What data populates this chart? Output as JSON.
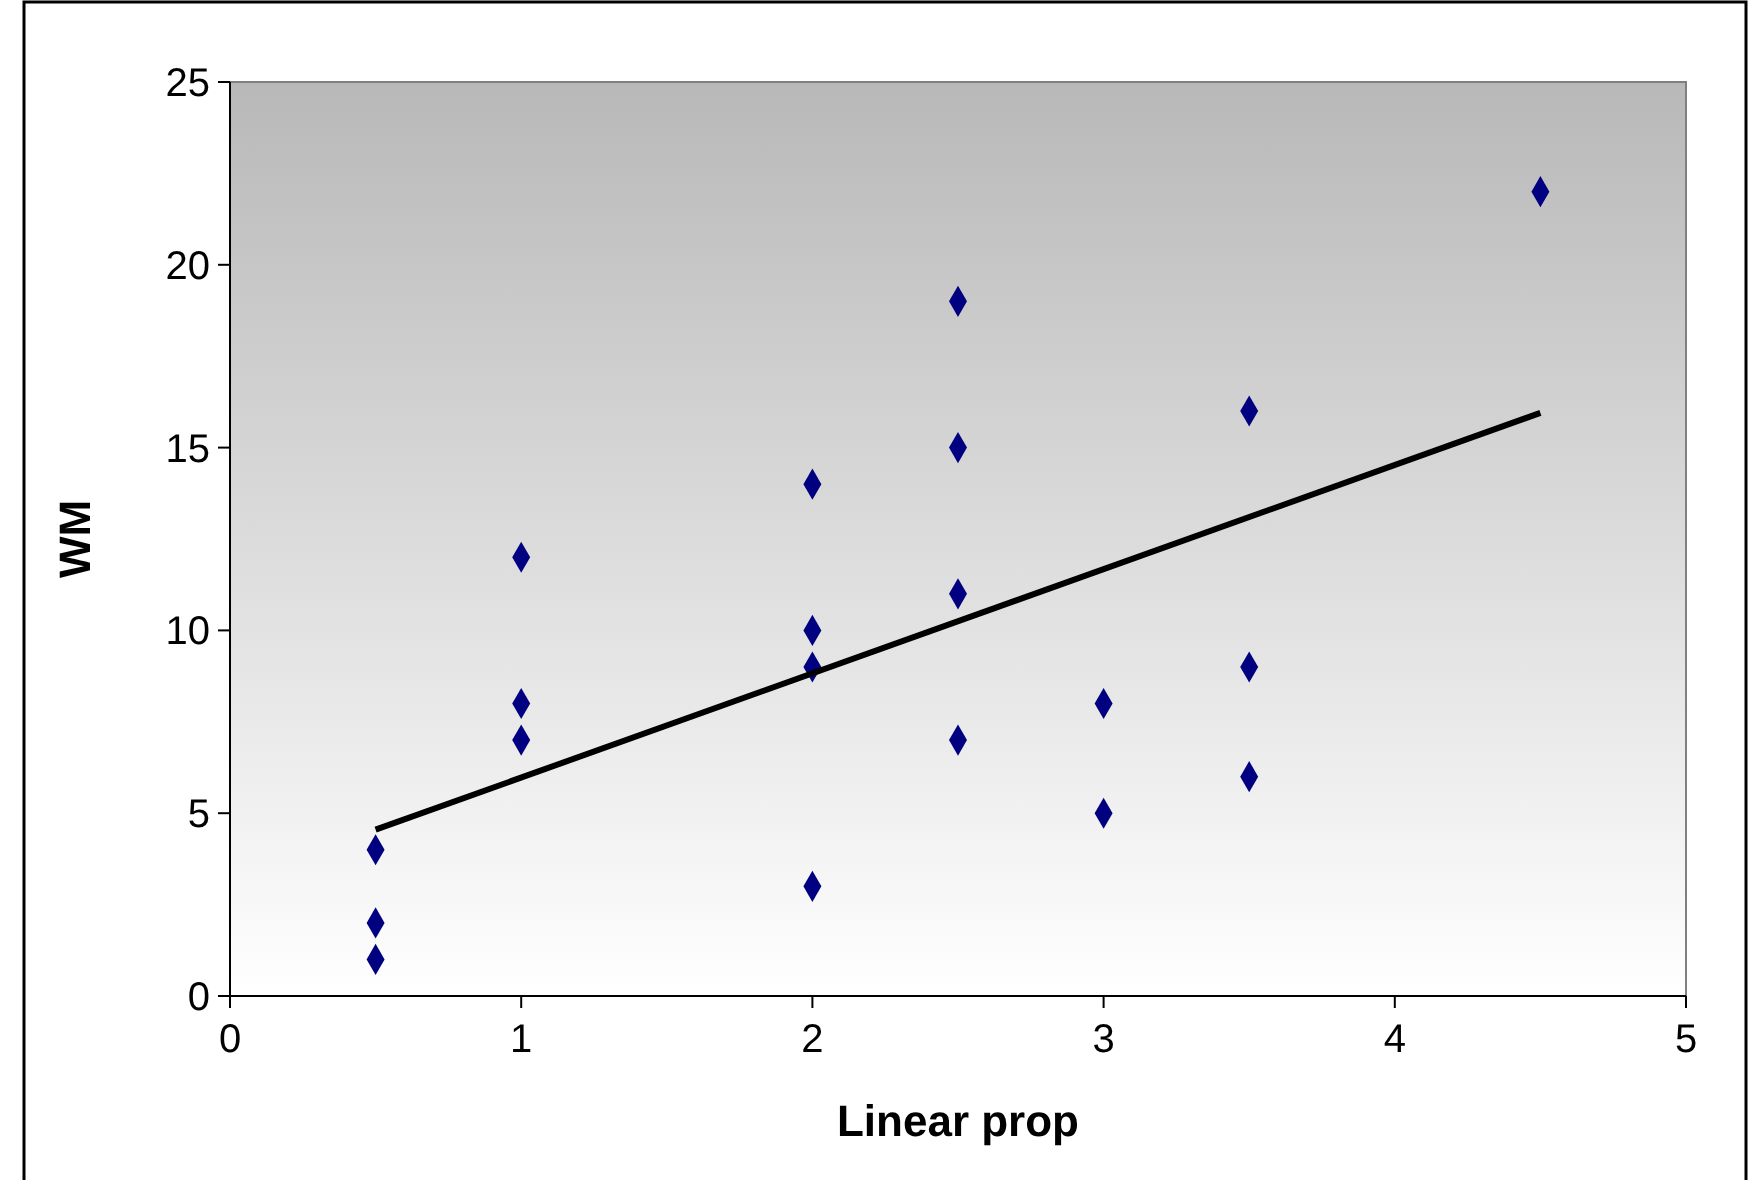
{
  "chart_data": {
    "type": "scatter",
    "xlabel": "Linear prop",
    "ylabel": "WM",
    "xlim": [
      0,
      5
    ],
    "ylim": [
      0,
      25
    ],
    "xticks": [
      0,
      1,
      2,
      3,
      4,
      5
    ],
    "yticks": [
      0,
      5,
      10,
      15,
      20,
      25
    ],
    "grid": false,
    "marker": "diamond",
    "series": [
      {
        "color": "#000080",
        "x": [
          0.5,
          0.5,
          0.5,
          1,
          1,
          1,
          2,
          2,
          2,
          2,
          2.5,
          2.5,
          2.5,
          2.5,
          3,
          3,
          3.5,
          3.5,
          3.5,
          4.5
        ],
        "values": [
          4,
          2,
          1,
          12,
          8,
          7,
          14,
          10,
          9,
          3,
          19,
          15,
          11,
          7,
          8,
          5,
          16,
          9,
          6,
          22
        ]
      },
      {
        "type": "line",
        "color": "#000000",
        "x": [
          0.5,
          4.5
        ],
        "values": [
          4.55,
          15.95
        ],
        "marker": "none",
        "line_style": "solid"
      }
    ]
  }
}
